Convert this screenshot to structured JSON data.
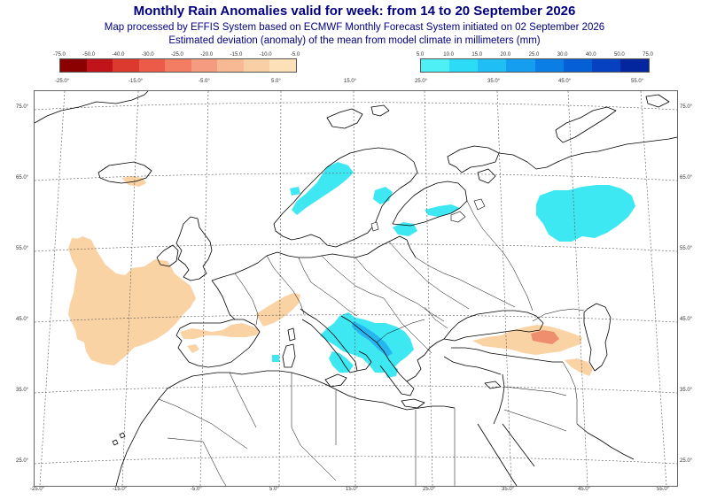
{
  "header": {
    "title": "Monthly Rain Anomalies valid for week: from 14 to 20 September 2026",
    "subtitle_1": "Map processed by EFFIS System based on ECMWF Monthly Forecast System initiated on 02 September 2026",
    "subtitle_2": "Estimated deviation (anomaly) of the mean from model climate in millimeters (mm)"
  },
  "legend": {
    "dry_labels": [
      "-75.0",
      "-50.0",
      "-40.0",
      "-30.0",
      "-25.0",
      "-20.0",
      "-15.0",
      "-10.0",
      "-5.0"
    ],
    "dry_colors": [
      "#8b0000",
      "#c0141a",
      "#dc3a2e",
      "#eb5b47",
      "#f27d63",
      "#f59b7f",
      "#f7b894",
      "#f9cfa5",
      "#fbe0b8"
    ],
    "wet_labels": [
      "5.0",
      "10.0",
      "15.0",
      "20.0",
      "25.0",
      "30.0",
      "40.0",
      "50.0",
      "75.0"
    ],
    "wet_colors": [
      "#4ef0f5",
      "#2cdcf7",
      "#1fbff5",
      "#159ef0",
      "#0b7ee6",
      "#055fd6",
      "#0541c0",
      "#03259e"
    ]
  },
  "map": {
    "lon_labels": [
      "-25.0°",
      "-15.0°",
      "-5.0°",
      "5.0°",
      "15.0°",
      "25.0°",
      "35.0°",
      "45.0°",
      "55.0°"
    ],
    "lat_labels": [
      "75.0°",
      "65.0°",
      "55.0°",
      "45.0°",
      "35.0°",
      "25.0°"
    ],
    "dry_color": "#f9d3a4",
    "wet_color": "#3ee8f2",
    "wet_strong_color": "#1a6fd8",
    "dry_strong_color": "#ee8e6e",
    "coast_color": "#000000",
    "grid_color": "#555555"
  }
}
